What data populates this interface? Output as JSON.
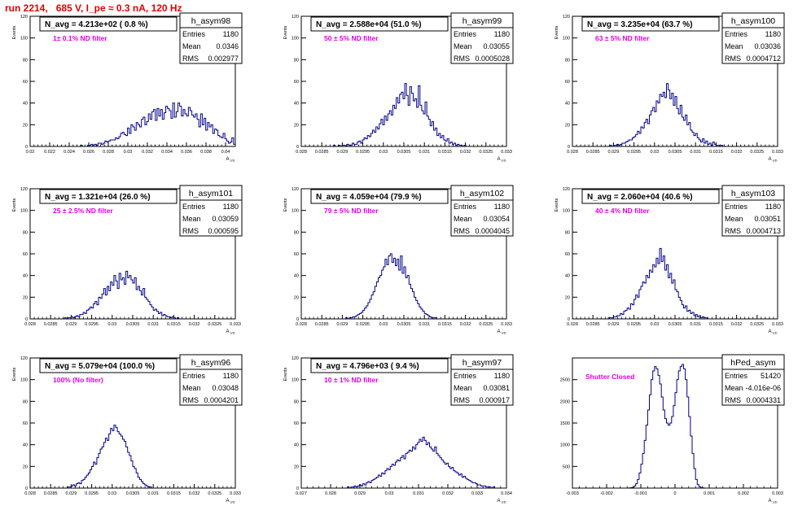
{
  "header": {
    "title": "run 2214,   685 V, I_pe ≈ 0.3 nA, 120 Hz"
  },
  "colors": {
    "histogram": "#00008b",
    "annotation": "#dd00dd",
    "run_title": "#e00000"
  },
  "chart_data": [
    {
      "type": "histogram",
      "hist_name": "h_asym98",
      "title": "N_avg = 4.213e+02 ( 0.8 %)",
      "filter_label": "1± 0.1% ND filter",
      "stats": {
        "Entries": "1180",
        "Mean": "0.0346",
        "RMS": "0.002977"
      },
      "xlabel": "A_UD",
      "ylabel": "Events",
      "xlim": [
        0.02,
        0.041
      ],
      "ylim": [
        0,
        120
      ],
      "xticks": [
        "0.02",
        "0.022",
        "0.024",
        "0.026",
        "0.028",
        "0.03",
        "0.032",
        "0.034",
        "0.036",
        "0.038",
        "0.04"
      ],
      "yticks": [
        "0",
        "20",
        "40",
        "60",
        "80",
        "100",
        "120"
      ],
      "values": [
        0,
        0,
        0,
        0,
        0,
        0,
        0,
        0,
        0,
        0,
        0,
        0,
        0,
        0,
        0,
        0,
        0,
        0,
        0,
        0,
        0,
        0,
        0,
        0,
        0,
        0,
        0,
        0,
        0,
        1,
        0,
        0,
        0,
        1,
        1,
        2,
        1,
        2,
        1,
        3,
        3,
        2,
        3,
        5,
        4,
        5,
        6,
        6,
        6,
        8,
        7,
        9,
        12,
        13,
        11,
        10,
        17,
        12,
        20,
        18,
        15,
        22,
        20,
        18,
        25,
        27,
        20,
        23,
        30,
        25,
        32,
        34,
        24,
        35,
        28,
        34,
        25,
        31,
        37,
        35,
        33,
        26,
        40,
        27,
        32,
        40,
        37,
        28,
        34,
        30,
        28,
        36,
        33,
        29,
        27,
        30,
        25,
        18,
        30,
        20,
        26,
        15,
        22,
        18,
        20,
        12,
        16,
        15,
        10,
        9,
        8,
        12,
        7,
        5,
        3,
        4,
        8,
        2
      ]
    },
    {
      "type": "histogram",
      "hist_name": "h_asym99",
      "title": "N_avg = 2.588e+04 (51.0 %)",
      "filter_label": "50 ± 5% ND filter",
      "stats": {
        "Entries": "1180",
        "Mean": "0.03055",
        "RMS": "0.0005028"
      },
      "xlabel": "A_UD",
      "ylabel": "Events",
      "xlim": [
        0.028,
        0.033
      ],
      "ylim": [
        0,
        120
      ],
      "xticks": [
        "0.028",
        "0.0285",
        "0.029",
        "0.0295",
        "0.03",
        "0.0305",
        "0.031",
        "0.0315",
        "0.032",
        "0.0325",
        "0.033"
      ],
      "yticks": [
        "0",
        "20",
        "40",
        "60",
        "80",
        "100",
        "120"
      ],
      "values": [
        0,
        0,
        0,
        0,
        0,
        0,
        0,
        0,
        0,
        0,
        0,
        0,
        0,
        0,
        0,
        0,
        0,
        0,
        0,
        1,
        0,
        0,
        1,
        0,
        1,
        1,
        0,
        2,
        1,
        1,
        3,
        2,
        2,
        4,
        5,
        3,
        6,
        8,
        7,
        10,
        9,
        12,
        15,
        13,
        18,
        16,
        21,
        25,
        20,
        28,
        24,
        30,
        33,
        29,
        38,
        35,
        45,
        40,
        48,
        50,
        44,
        58,
        47,
        38,
        55,
        49,
        42,
        44,
        36,
        56,
        38,
        33,
        30,
        41,
        28,
        25,
        19,
        23,
        15,
        17,
        10,
        12,
        8,
        10,
        6,
        5,
        7,
        3,
        4,
        2,
        3,
        1,
        2,
        1,
        1,
        0,
        1,
        0,
        0,
        0,
        0,
        0,
        0,
        0,
        0,
        0,
        0,
        0,
        0,
        0,
        0,
        0,
        0,
        0,
        0,
        0,
        0,
        0,
        0,
        0,
        0
      ]
    },
    {
      "type": "histogram",
      "hist_name": "h_asym100",
      "title": "N_avg = 3.235e+04 (63.7 %)",
      "filter_label": "63 ± 5% ND filter",
      "stats": {
        "Entries": "1180",
        "Mean": "0.03036",
        "RMS": "0.0004712"
      },
      "xlabel": "A_UD",
      "ylabel": "Events",
      "xlim": [
        0.028,
        0.033
      ],
      "ylim": [
        0,
        120
      ],
      "xticks": [
        "0.028",
        "0.0285",
        "0.029",
        "0.0295",
        "0.03",
        "0.0305",
        "0.031",
        "0.0315",
        "0.032",
        "0.0325",
        "0.033"
      ],
      "yticks": [
        "0",
        "20",
        "40",
        "60",
        "80",
        "100",
        "120"
      ],
      "values": [
        0,
        0,
        0,
        0,
        0,
        0,
        0,
        0,
        0,
        0,
        0,
        0,
        0,
        0,
        0,
        0,
        0,
        0,
        0,
        0,
        0,
        0,
        1,
        0,
        1,
        1,
        2,
        1,
        2,
        3,
        3,
        4,
        5,
        6,
        6,
        8,
        9,
        11,
        14,
        12,
        18,
        17,
        22,
        25,
        21,
        29,
        33,
        36,
        32,
        42,
        40,
        48,
        46,
        50,
        45,
        58,
        52,
        44,
        49,
        38,
        46,
        35,
        30,
        38,
        27,
        24,
        29,
        20,
        22,
        15,
        13,
        10,
        12,
        8,
        6,
        4,
        7,
        3,
        5,
        2,
        3,
        1,
        4,
        2,
        1,
        1,
        0,
        1,
        0,
        0,
        0,
        0,
        0,
        0,
        0,
        0,
        0,
        0,
        0,
        0,
        0,
        0,
        0,
        0,
        0,
        0,
        0,
        0,
        0,
        0,
        0,
        0,
        0,
        0,
        0,
        0,
        0,
        0,
        0,
        0
      ]
    },
    {
      "type": "histogram",
      "hist_name": "h_asym101",
      "title": "N_avg = 1.321e+04 (26.0 %)",
      "filter_label": "25 ± 2.5% ND filter",
      "stats": {
        "Entries": "1180",
        "Mean": "0.03059",
        "RMS": "0.000595"
      },
      "xlabel": "A_UD",
      "ylabel": "Events",
      "xlim": [
        0.028,
        0.033
      ],
      "ylim": [
        0,
        120
      ],
      "xticks": [
        "0.028",
        "0.0285",
        "0.029",
        "0.0295",
        "0.03",
        "0.0305",
        "0.031",
        "0.0315",
        "0.032",
        "0.0325",
        "0.033"
      ],
      "yticks": [
        "0",
        "20",
        "40",
        "60",
        "80",
        "100",
        "120"
      ],
      "values": [
        0,
        0,
        0,
        0,
        0,
        0,
        0,
        0,
        0,
        0,
        0,
        0,
        0,
        0,
        0,
        0,
        0,
        0,
        0,
        0,
        1,
        0,
        1,
        1,
        2,
        1,
        2,
        3,
        2,
        4,
        4,
        6,
        5,
        8,
        9,
        11,
        10,
        14,
        16,
        13,
        20,
        19,
        23,
        28,
        22,
        30,
        26,
        34,
        31,
        40,
        35,
        28,
        42,
        36,
        38,
        32,
        44,
        38,
        40,
        36,
        33,
        38,
        27,
        30,
        26,
        22,
        28,
        20,
        18,
        16,
        13,
        11,
        8,
        9,
        7,
        5,
        6,
        3,
        4,
        3,
        2,
        2,
        1,
        2,
        1,
        0,
        1,
        0,
        0,
        0,
        0,
        0,
        0,
        0,
        0,
        0,
        0,
        0,
        0,
        0,
        0,
        0,
        0,
        0,
        0,
        0,
        0,
        0,
        0,
        0,
        0,
        0,
        0,
        0,
        0,
        0,
        0,
        0,
        0,
        0
      ]
    },
    {
      "type": "histogram",
      "hist_name": "h_asym102",
      "title": "N_avg = 4.059e+04 (79.9 %)",
      "filter_label": "79 ± 5% ND filter",
      "stats": {
        "Entries": "1180",
        "Mean": "0.03054",
        "RMS": "0.0004045"
      },
      "xlabel": "A_UD",
      "ylabel": "Events",
      "xlim": [
        0.028,
        0.033
      ],
      "ylim": [
        0,
        120
      ],
      "xticks": [
        "0.028",
        "0.0285",
        "0.029",
        "0.0295",
        "0.03",
        "0.0305",
        "0.031",
        "0.0315",
        "0.032",
        "0.0325",
        "0.033"
      ],
      "yticks": [
        "0",
        "20",
        "40",
        "60",
        "80",
        "100",
        "120"
      ],
      "values": [
        0,
        0,
        0,
        0,
        0,
        0,
        0,
        0,
        0,
        0,
        0,
        0,
        0,
        0,
        0,
        0,
        0,
        0,
        0,
        0,
        0,
        0,
        0,
        0,
        0,
        0,
        1,
        0,
        1,
        1,
        2,
        2,
        3,
        4,
        5,
        6,
        8,
        10,
        12,
        15,
        18,
        22,
        25,
        30,
        34,
        38,
        40,
        45,
        48,
        55,
        50,
        58,
        60,
        52,
        56,
        49,
        55,
        45,
        58,
        42,
        48,
        38,
        40,
        32,
        28,
        25,
        20,
        17,
        14,
        11,
        9,
        7,
        5,
        4,
        3,
        2,
        1,
        1,
        1,
        0,
        0,
        0,
        0,
        0,
        0,
        0,
        0,
        0,
        0,
        0,
        0,
        0,
        0,
        0,
        0,
        0,
        0,
        0,
        0,
        0,
        0,
        0,
        0,
        0,
        0,
        0,
        0,
        0,
        0,
        0,
        0,
        0,
        0,
        0,
        0,
        0,
        0,
        0,
        0,
        0
      ]
    },
    {
      "type": "histogram",
      "hist_name": "h_asym103",
      "title": "N_avg = 2.060e+04 (40.6 %)",
      "filter_label": "40 ± 4% ND filter",
      "stats": {
        "Entries": "1180",
        "Mean": "0.03051",
        "RMS": "0.0004713"
      },
      "xlabel": "A_UD",
      "ylabel": "Events",
      "xlim": [
        0.028,
        0.033
      ],
      "ylim": [
        0,
        120
      ],
      "xticks": [
        "0.028",
        "0.0285",
        "0.029",
        "0.0295",
        "0.03",
        "0.0305",
        "0.031",
        "0.0315",
        "0.032",
        "0.0325",
        "0.033"
      ],
      "yticks": [
        "0",
        "20",
        "40",
        "60",
        "80",
        "100",
        "120"
      ],
      "values": [
        0,
        0,
        0,
        0,
        0,
        0,
        0,
        0,
        0,
        0,
        0,
        0,
        0,
        0,
        0,
        0,
        0,
        0,
        0,
        0,
        0,
        1,
        1,
        1,
        2,
        2,
        3,
        3,
        5,
        4,
        7,
        8,
        10,
        9,
        14,
        13,
        18,
        22,
        20,
        27,
        30,
        34,
        33,
        40,
        38,
        45,
        43,
        50,
        48,
        56,
        51,
        65,
        53,
        58,
        45,
        50,
        38,
        42,
        33,
        36,
        27,
        25,
        20,
        17,
        13,
        10,
        12,
        7,
        8,
        5,
        6,
        3,
        4,
        2,
        3,
        1,
        2,
        1,
        1,
        0,
        0,
        0,
        0,
        0,
        0,
        0,
        0,
        0,
        0,
        0,
        0,
        0,
        0,
        0,
        0,
        0,
        0,
        0,
        0,
        0,
        0,
        0,
        0,
        0,
        0,
        0,
        0,
        0,
        0,
        0,
        0,
        0,
        0,
        0,
        0,
        0,
        0,
        0,
        0,
        0
      ]
    },
    {
      "type": "histogram",
      "hist_name": "h_asym96",
      "title": "N_avg = 5.079e+04 (100.0 %)",
      "filter_label": "100% (No filter)",
      "stats": {
        "Entries": "1180",
        "Mean": "0.03048",
        "RMS": "0.0004201"
      },
      "xlabel": "A_UD",
      "ylabel": "Events",
      "xlim": [
        0.028,
        0.033
      ],
      "ylim": [
        0,
        120
      ],
      "xticks": [
        "0.028",
        "0.0285",
        "0.029",
        "0.0295",
        "0.03",
        "0.0305",
        "0.031",
        "0.0315",
        "0.032",
        "0.0325",
        "0.033"
      ],
      "yticks": [
        "0",
        "20",
        "40",
        "60",
        "80",
        "100",
        "120"
      ],
      "values": [
        0,
        0,
        0,
        0,
        0,
        0,
        0,
        0,
        0,
        0,
        0,
        0,
        0,
        0,
        0,
        0,
        0,
        0,
        0,
        0,
        0,
        0,
        1,
        1,
        2,
        3,
        2,
        4,
        5,
        4,
        7,
        8,
        10,
        12,
        14,
        17,
        20,
        24,
        22,
        28,
        32,
        36,
        38,
        42,
        46,
        44,
        50,
        55,
        53,
        58,
        56,
        52,
        50,
        48,
        45,
        43,
        38,
        33,
        30,
        25,
        20,
        18,
        14,
        10,
        8,
        6,
        4,
        3,
        2,
        1,
        1,
        0,
        0,
        0,
        0,
        0,
        0,
        0,
        0,
        0,
        0,
        0,
        0,
        0,
        0,
        0,
        0,
        0,
        0,
        0,
        0,
        0,
        0,
        0,
        0,
        0,
        0,
        0,
        0,
        0,
        0,
        0,
        0,
        0,
        0,
        0,
        0,
        0,
        0,
        0,
        0,
        0,
        0,
        0,
        0,
        0,
        0,
        0,
        0,
        0
      ]
    },
    {
      "type": "histogram",
      "hist_name": "h_asym97",
      "title": "N_avg = 4.796e+03 ( 9.4 %)",
      "filter_label": "10 ± 1% ND filter",
      "stats": {
        "Entries": "1180",
        "Mean": "0.03081",
        "RMS": "0.000917"
      },
      "xlabel": "A_UD",
      "ylabel": "Events",
      "xlim": [
        0.027,
        0.034
      ],
      "ylim": [
        0,
        120
      ],
      "xticks": [
        "0.027",
        "0.028",
        "0.029",
        "0.03",
        "0.031",
        "0.032",
        "0.033",
        "0.034"
      ],
      "yticks": [
        "0",
        "20",
        "40",
        "60",
        "80",
        "100",
        "120"
      ],
      "values": [
        0,
        0,
        0,
        0,
        0,
        0,
        0,
        0,
        0,
        0,
        0,
        0,
        0,
        0,
        0,
        0,
        0,
        0,
        0,
        0,
        0,
        0,
        0,
        0,
        0,
        0,
        0,
        1,
        0,
        1,
        1,
        2,
        1,
        2,
        3,
        2,
        4,
        3,
        5,
        6,
        5,
        7,
        8,
        9,
        10,
        12,
        11,
        14,
        13,
        16,
        18,
        17,
        20,
        22,
        21,
        24,
        26,
        25,
        28,
        30,
        27,
        32,
        33,
        35,
        34,
        38,
        36,
        40,
        42,
        45,
        43,
        47,
        44,
        40,
        42,
        38,
        36,
        34,
        38,
        32,
        30,
        28,
        26,
        24,
        22,
        23,
        20,
        18,
        19,
        16,
        15,
        14,
        12,
        13,
        10,
        11,
        9,
        8,
        7,
        6,
        5,
        5,
        4,
        3,
        3,
        2,
        2,
        2,
        1,
        1,
        1,
        0,
        1,
        0,
        0,
        0,
        0,
        0,
        0,
        0
      ]
    },
    {
      "type": "histogram",
      "hist_name": "hPed_asym",
      "title": "",
      "filter_label": "Shutter Closed",
      "stats": {
        "Entries": "51420",
        "Mean": "-4.016e-06",
        "RMS": "0.0004331"
      },
      "xlabel": "A_UD",
      "ylabel": "",
      "xlim": [
        -0.003,
        0.003
      ],
      "ylim": [
        0,
        3000
      ],
      "xticks": [
        "-0.003",
        "-0.002",
        "-0.001",
        "0",
        "0.001",
        "0.002",
        "0.003"
      ],
      "yticks": [
        "500",
        "1000",
        "1500",
        "2000",
        "2500"
      ],
      "values": [
        0,
        0,
        0,
        0,
        0,
        0,
        0,
        0,
        0,
        0,
        0,
        0,
        0,
        0,
        0,
        0,
        0,
        0,
        0,
        0,
        0,
        0,
        0,
        0,
        0,
        0,
        0,
        0,
        0,
        0,
        0,
        0,
        0,
        5,
        10,
        20,
        50,
        100,
        200,
        350,
        550,
        800,
        1100,
        1450,
        1800,
        2150,
        2500,
        2700,
        2800,
        2750,
        2600,
        2400,
        2100,
        1800,
        1600,
        1500,
        1450,
        1500,
        1650,
        1900,
        2200,
        2500,
        2700,
        2800,
        2850,
        2750,
        2500,
        2100,
        1650,
        1200,
        800,
        450,
        200,
        80,
        30,
        10,
        5,
        0,
        0,
        0,
        0,
        0,
        0,
        0,
        0,
        0,
        0,
        0,
        0,
        0,
        0,
        0,
        0,
        0,
        0,
        0,
        0,
        0,
        0,
        0,
        0,
        0,
        0,
        0,
        0,
        0,
        0,
        0,
        0,
        0,
        0,
        0,
        0,
        0,
        0,
        0,
        0,
        0,
        0,
        0
      ]
    }
  ]
}
